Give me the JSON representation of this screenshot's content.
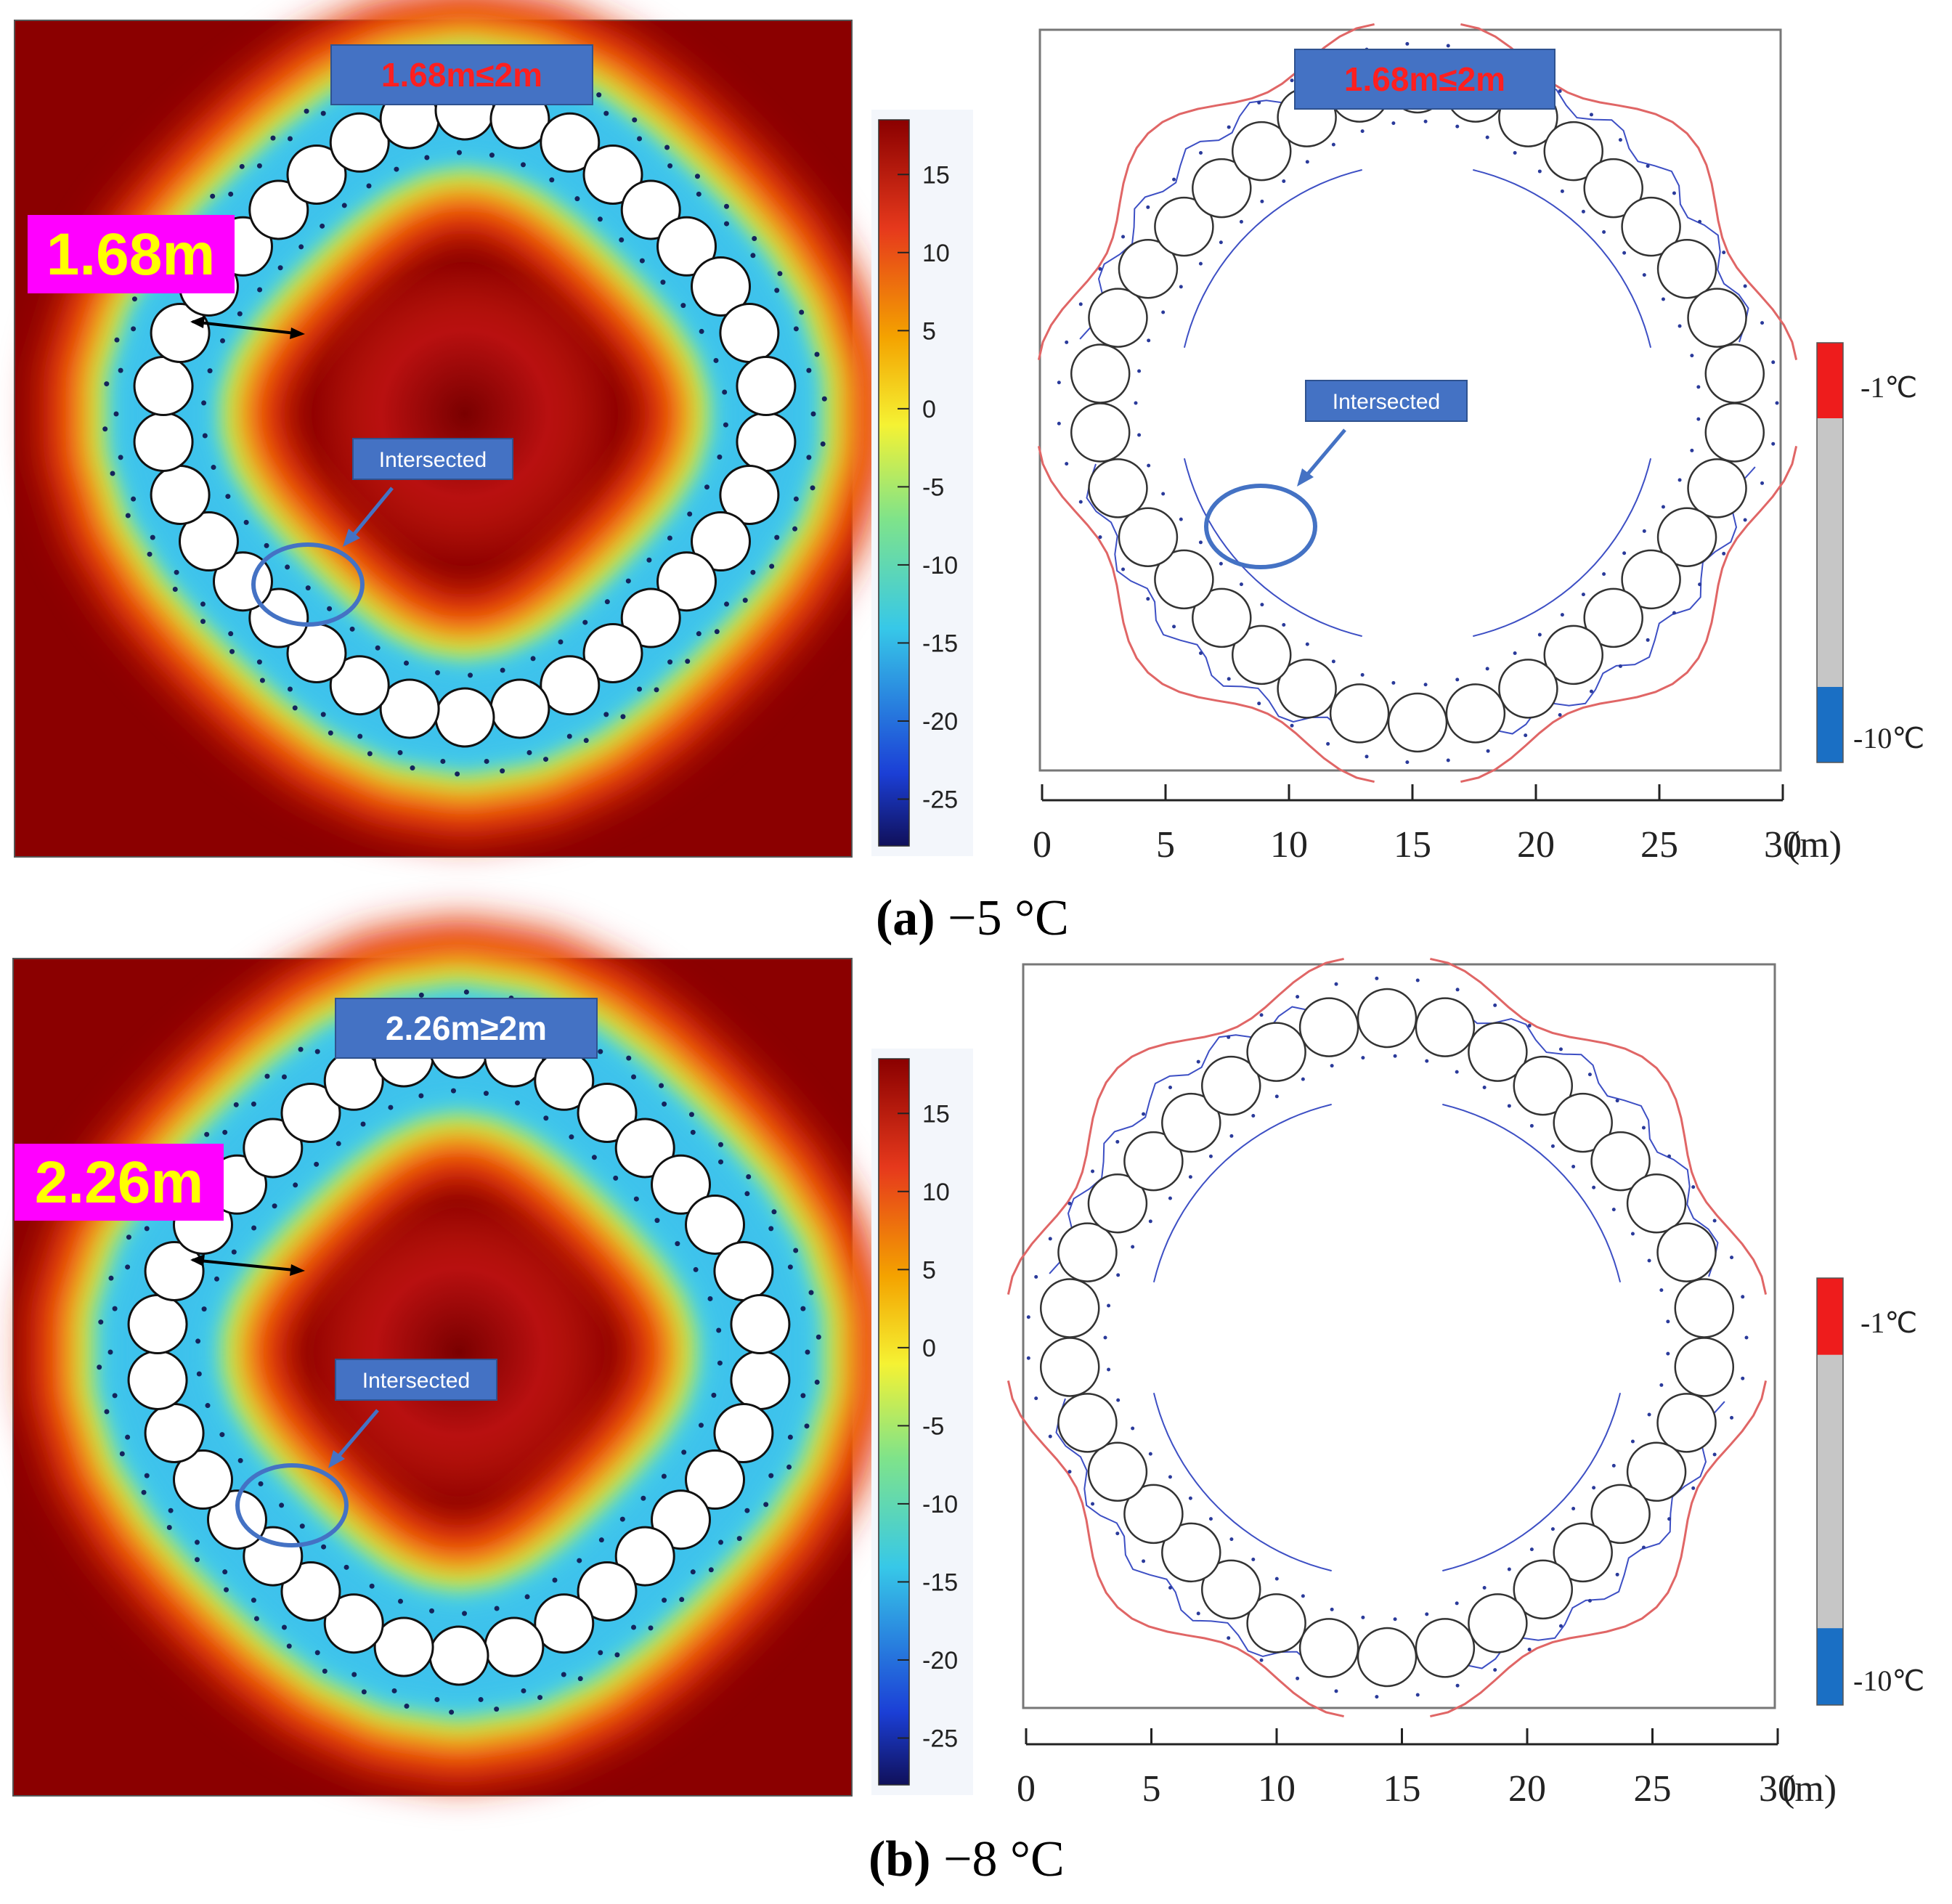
{
  "figure": {
    "panels": [
      {
        "id": "a",
        "caption_letter": "(a)",
        "caption_text": " −5 °C",
        "temperature_plot": {
          "status_label": "1.68m≤2m",
          "thickness_label": "1.68m",
          "intersected_label": "Intersected"
        },
        "contour_plot": {
          "status_label": "1.68m≤2m",
          "intersected_label": "Intersected"
        }
      },
      {
        "id": "b",
        "caption_letter": "(b)",
        "caption_text": " −8 °C",
        "temperature_plot": {
          "status_label": "2.26m≥2m",
          "thickness_label": "2.26m",
          "intersected_label": "Intersected"
        },
        "contour_plot": {
          "status_label": "",
          "intersected_label": ""
        }
      }
    ],
    "colorbar": {
      "ticks": [
        "15",
        "10",
        "5",
        "0",
        "-5",
        "-10",
        "-15",
        "-20",
        "-25"
      ],
      "tick_values": [
        15,
        10,
        5,
        0,
        -5,
        -10,
        -15,
        -20,
        -25
      ],
      "range": [
        -28,
        18.5
      ],
      "colors": [
        "#10105a",
        "#1b3fd6",
        "#37c8e8",
        "#7fe38a",
        "#f5f233",
        "#f4a300",
        "#e6391c",
        "#8a0000"
      ]
    },
    "legend": {
      "upper_label": "-1℃",
      "lower_label": "-10℃",
      "colors": {
        "upper": "#ee1c1c",
        "middle": "#c6c6c6",
        "lower": "#1a6fc4"
      }
    },
    "x_axis": {
      "ticks": [
        "0",
        "5",
        "10",
        "15",
        "20",
        "25",
        "30"
      ],
      "tick_values": [
        0,
        5,
        10,
        15,
        20,
        25,
        30
      ],
      "unit_label": "(m)",
      "range": [
        0,
        30
      ]
    },
    "colors": {
      "label_box": "#4472c4",
      "label_red_text": "#ff1f1f",
      "label_white_text": "#ffffff",
      "magenta": "#ff00ff",
      "yellow_text": "#ffff00",
      "contour_red": "#e06666",
      "contour_blue": "#3d4fc4"
    }
  }
}
